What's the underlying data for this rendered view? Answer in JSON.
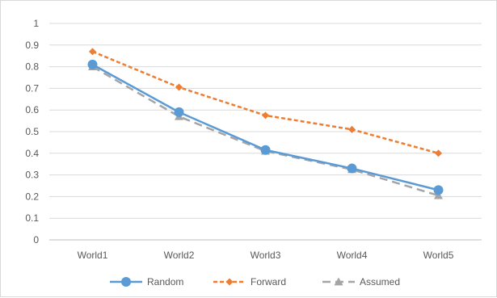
{
  "chart_data": {
    "type": "line",
    "categories": [
      "World1",
      "World2",
      "World3",
      "World4",
      "World5"
    ],
    "y_ticks": [
      "0",
      "0.1",
      "0.2",
      "0.3",
      "0.4",
      "0.5",
      "0.6",
      "0.7",
      "0.8",
      "0.9",
      "1"
    ],
    "ylim": [
      0,
      1
    ],
    "grid": true,
    "legend_position": "bottom",
    "series": [
      {
        "name": "Random",
        "values": [
          0.81,
          0.59,
          0.415,
          0.33,
          0.23
        ],
        "color": "#5b9bd5",
        "marker": "circle",
        "line": "solid"
      },
      {
        "name": "Forward",
        "values": [
          0.87,
          0.705,
          0.575,
          0.51,
          0.4
        ],
        "color": "#ed7d31",
        "marker": "diamond",
        "line": "dotted"
      },
      {
        "name": "Assumed",
        "values": [
          0.8,
          0.57,
          0.41,
          0.325,
          0.205
        ],
        "color": "#a5a5a5",
        "marker": "triangle",
        "line": "dashed"
      }
    ]
  }
}
